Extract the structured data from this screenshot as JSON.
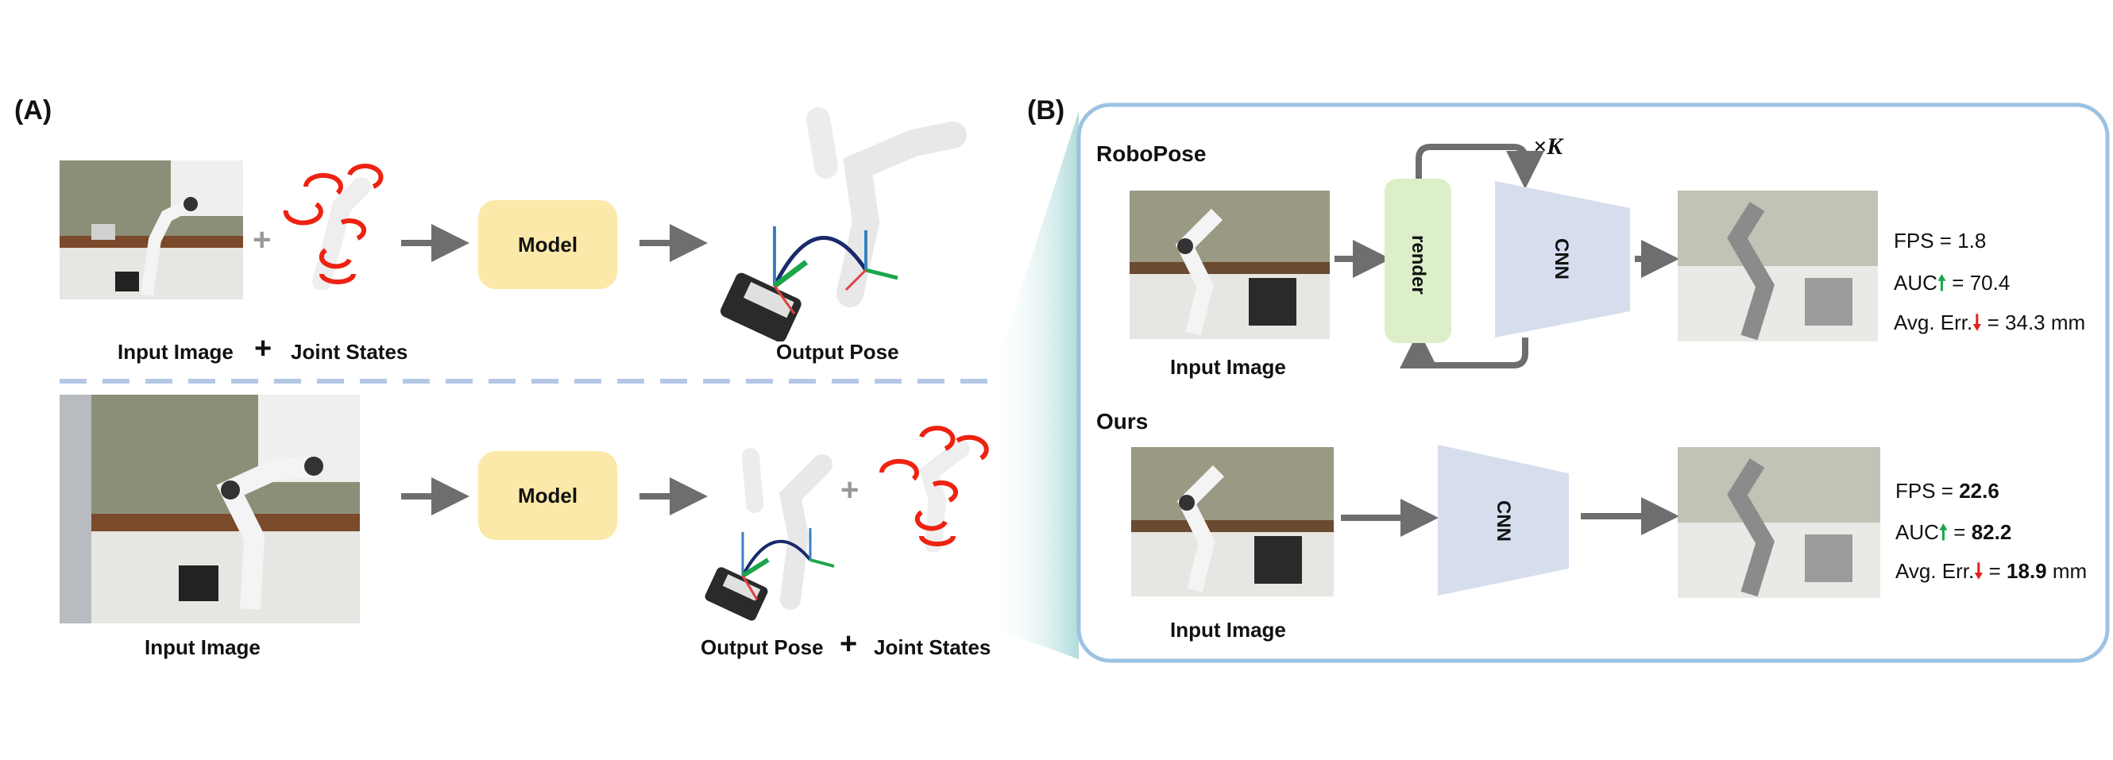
{
  "panel_a": {
    "label": "(A)",
    "top": {
      "input_image_label": "Input Image",
      "plus_symbol": "+",
      "joint_states_label": "Joint States",
      "model_label": "Model",
      "output_pose_label": "Output Pose"
    },
    "bottom": {
      "input_image_label": "Input Image",
      "model_label": "Model",
      "output_pose_label": "Output Pose",
      "plus_symbol": "+",
      "joint_states_label": "Joint States"
    }
  },
  "panel_b": {
    "label": "(B)",
    "robopose": {
      "title": "RoboPose",
      "input_image_label": "Input Image",
      "render_label": "render",
      "cnn_label": "CNN",
      "loop_label": "×K",
      "fps_text": "FPS = 1.8",
      "auc_label": "AUC",
      "auc_value": " = 70.4",
      "err_label": "Avg. Err.",
      "err_value": " = 34.3 mm"
    },
    "ours": {
      "title": "Ours",
      "input_image_label": "Input Image",
      "cnn_label": "CNN",
      "fps_prefix": "FPS = ",
      "fps_value": "22.6",
      "auc_label": "AUC",
      "auc_eq": " = ",
      "auc_value": "82.2",
      "err_label": "Avg. Err.",
      "err_eq": " = ",
      "err_value": "18.9",
      "err_unit": " mm"
    }
  },
  "colors": {
    "model_box": "#fbe9a9",
    "render_box": "#dcefc8",
    "cnn": "#d6deee",
    "panel_border": "#9cc2e2",
    "divider": "#b4c8e6",
    "arrow": "#6e6e6e",
    "up_arrow": "#1aa64a",
    "down_arrow": "#e02020"
  }
}
